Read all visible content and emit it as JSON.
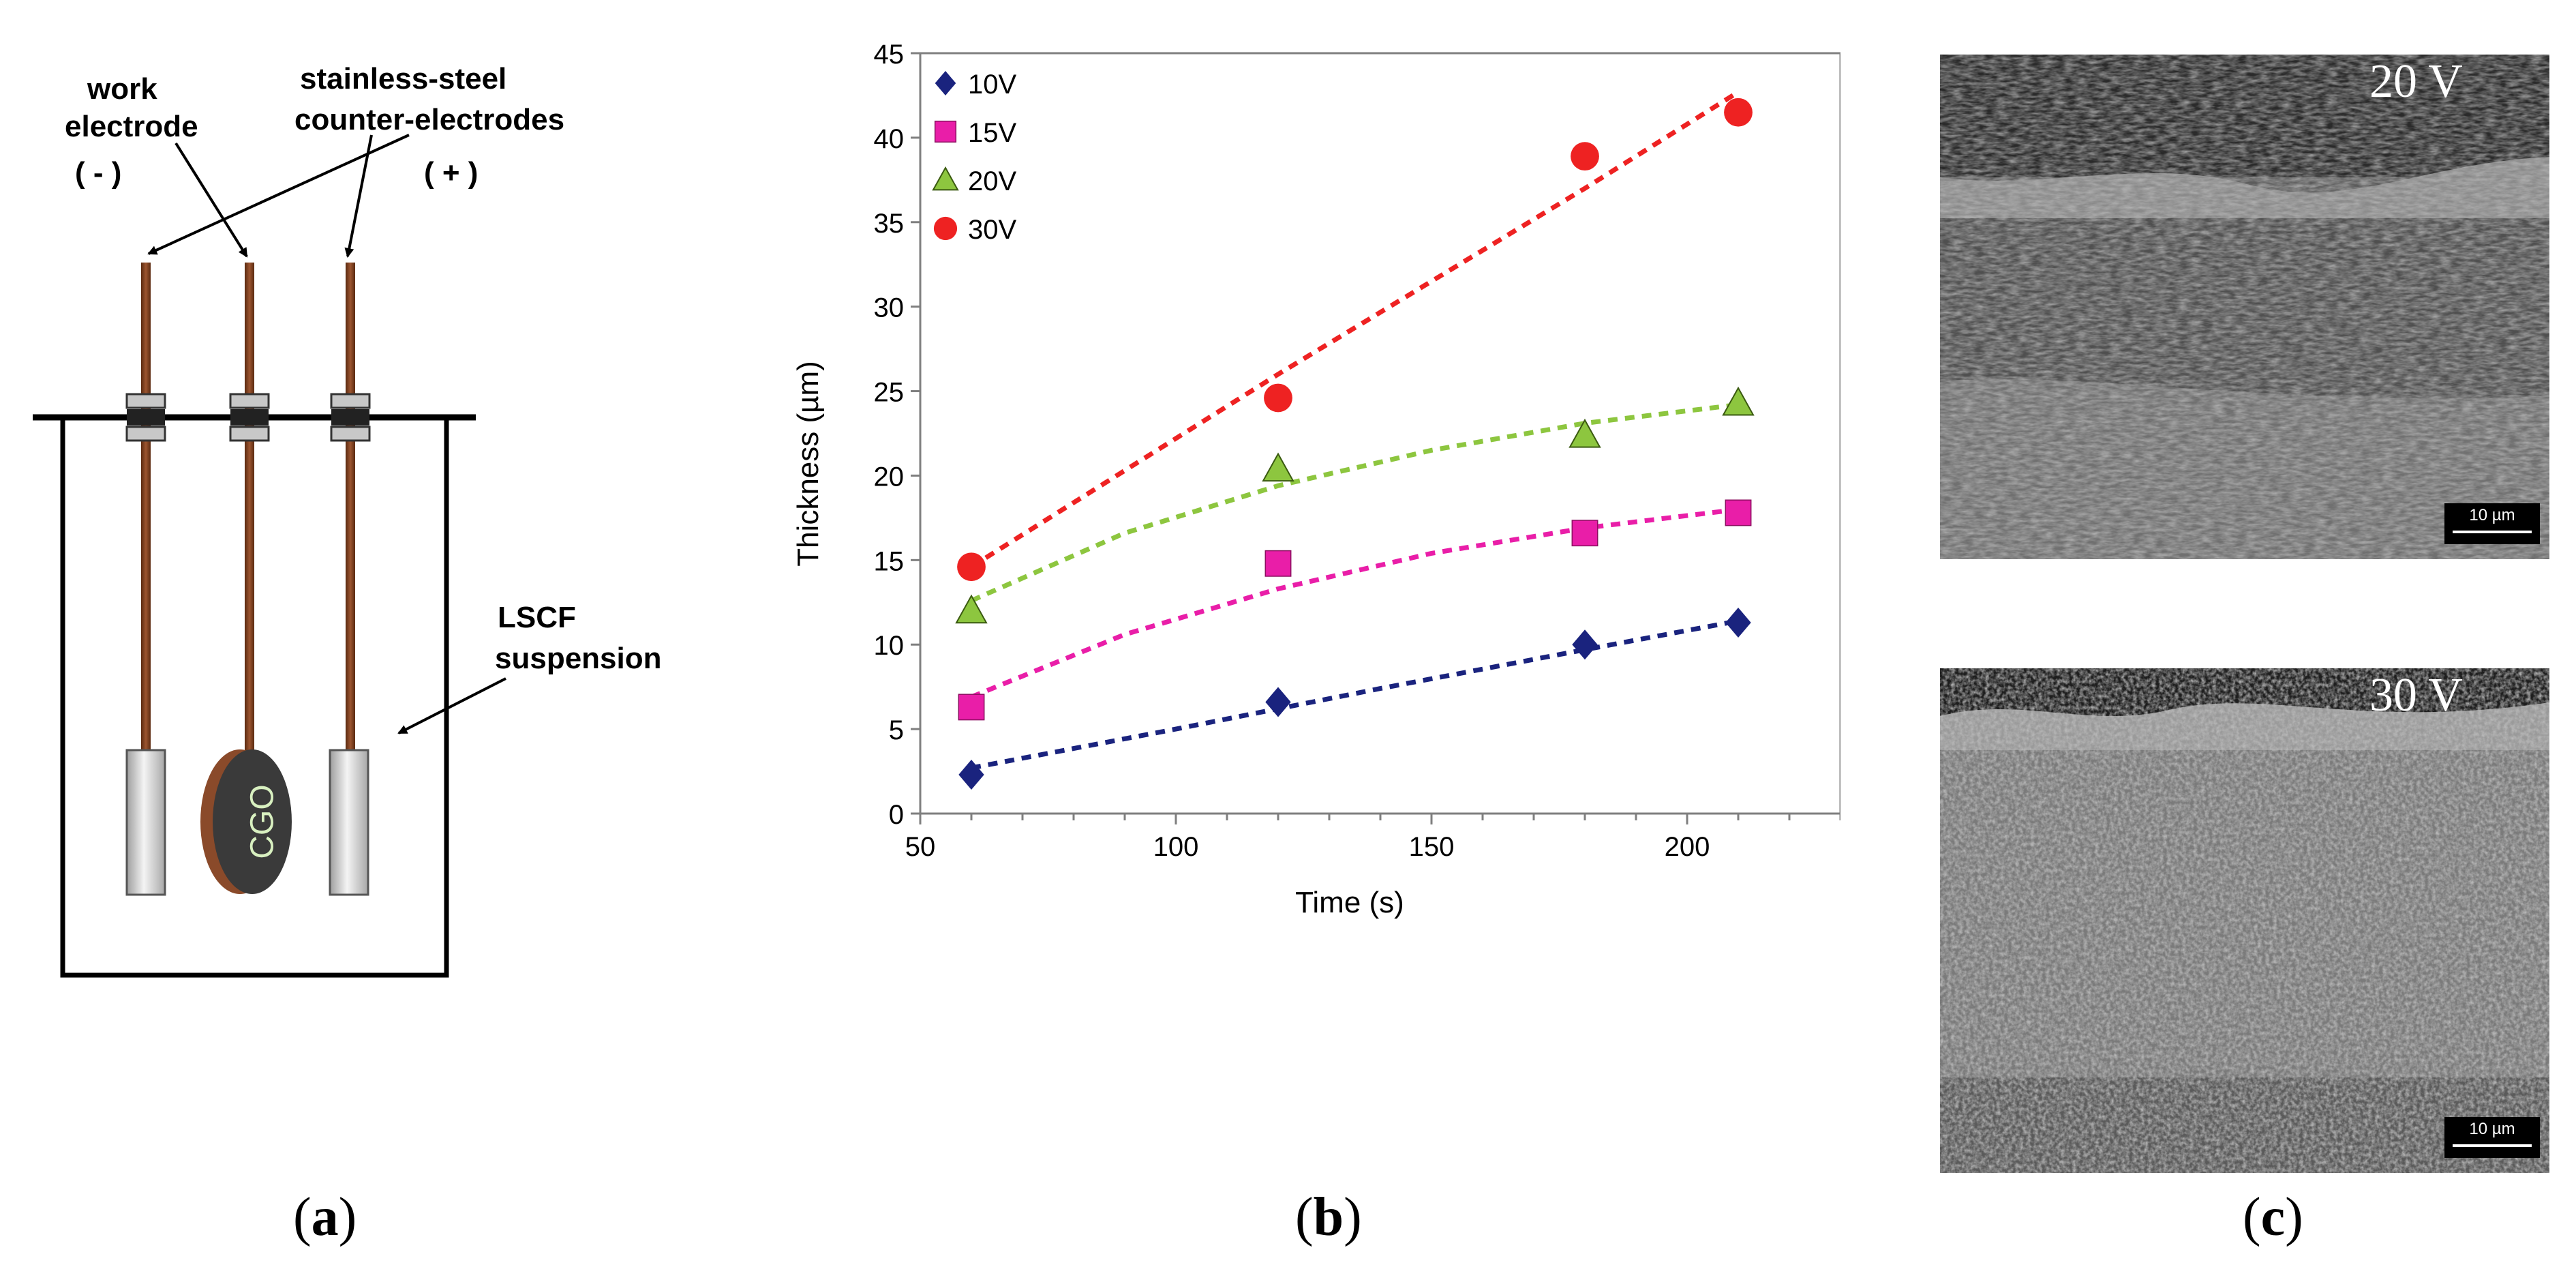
{
  "panel_a": {
    "label_work_1": "work",
    "label_work_2": "electrode",
    "label_minus": "( - )",
    "label_ss_1": "stainless-steel",
    "label_ss_2": "counter-electrodes",
    "label_plus": "( + )",
    "label_lscf_1": "LSCF",
    "label_lscf_2": "suspension",
    "disk_text": "CGO",
    "caption": "a"
  },
  "chart_data": {
    "type": "scatter",
    "xlabel": "Time (s)",
    "ylabel": "Thickness (µm)",
    "xlim": [
      50,
      230
    ],
    "ylim": [
      0,
      45
    ],
    "xticks": [
      50,
      100,
      150,
      200
    ],
    "yticks": [
      0,
      5,
      10,
      15,
      20,
      25,
      30,
      35,
      40,
      45
    ],
    "legend_position": "top-left",
    "series": [
      {
        "name": "10V",
        "color": "#1a237e",
        "marker": "diamond",
        "x": [
          60,
          120,
          180,
          210
        ],
        "y": [
          2.3,
          6.6,
          10.0,
          11.3
        ],
        "fit": [
          [
            60,
            2.7
          ],
          [
            100,
            5.0
          ],
          [
            140,
            7.4
          ],
          [
            180,
            9.7
          ],
          [
            210,
            11.4
          ]
        ]
      },
      {
        "name": "15V",
        "color": "#e91ea8",
        "marker": "square",
        "x": [
          60,
          120,
          180,
          210
        ],
        "y": [
          6.3,
          14.8,
          16.6,
          17.8
        ],
        "fit": [
          [
            60,
            6.9
          ],
          [
            90,
            10.6
          ],
          [
            120,
            13.3
          ],
          [
            150,
            15.4
          ],
          [
            180,
            16.9
          ],
          [
            210,
            18.0
          ]
        ]
      },
      {
        "name": "20V",
        "color": "#8dc63f",
        "marker": "triangle",
        "x": [
          60,
          120,
          180,
          210
        ],
        "y": [
          12.0,
          20.4,
          22.4,
          24.3
        ],
        "fit": [
          [
            60,
            12.6
          ],
          [
            90,
            16.6
          ],
          [
            120,
            19.4
          ],
          [
            150,
            21.5
          ],
          [
            180,
            23.1
          ],
          [
            210,
            24.2
          ]
        ]
      },
      {
        "name": "30V",
        "color": "#ee2222",
        "marker": "circle",
        "x": [
          60,
          120,
          180,
          210
        ],
        "y": [
          14.6,
          24.6,
          38.9,
          41.5
        ],
        "fit": [
          [
            60,
            14.6
          ],
          [
            120,
            26.0
          ],
          [
            180,
            37.0
          ],
          [
            210,
            42.7
          ]
        ]
      }
    ],
    "caption": "b"
  },
  "panel_c": {
    "top_label": "20 V",
    "bottom_label": "30 V",
    "scale_top": "10 µm",
    "scale_bottom": "10 µm",
    "caption": "c"
  },
  "colors": {
    "rod": "#7a3b1a",
    "disk_face": "#3a3a3a",
    "disk_edge": "#8a4a2a",
    "axis": "#7f7f7f"
  }
}
